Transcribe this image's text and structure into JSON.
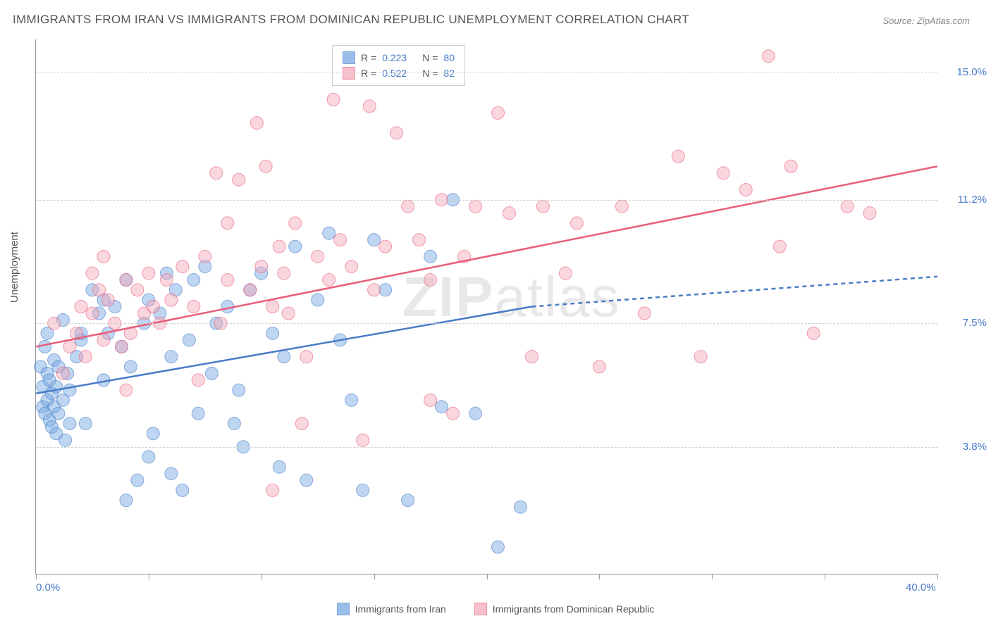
{
  "title": "IMMIGRANTS FROM IRAN VS IMMIGRANTS FROM DOMINICAN REPUBLIC UNEMPLOYMENT CORRELATION CHART",
  "source": "Source: ZipAtlas.com",
  "y_axis_label": "Unemployment",
  "watermark": "ZIPatlas",
  "chart": {
    "type": "scatter",
    "xlim": [
      0,
      40
    ],
    "ylim": [
      0,
      16
    ],
    "x_ticks_minor": [
      0,
      5,
      10,
      15,
      20,
      25,
      30,
      35,
      40
    ],
    "x_tick_labels": [
      {
        "pos": 0,
        "label": "0.0%"
      },
      {
        "pos": 40,
        "label": "40.0%"
      }
    ],
    "y_gridlines": [
      3.8,
      7.5,
      11.2,
      15.0
    ],
    "y_tick_labels": [
      {
        "pos": 3.8,
        "label": "3.8%"
      },
      {
        "pos": 7.5,
        "label": "7.5%"
      },
      {
        "pos": 11.2,
        "label": "11.2%"
      },
      {
        "pos": 15.0,
        "label": "15.0%"
      }
    ],
    "background_color": "#ffffff",
    "grid_color": "#d0d0d0",
    "marker_radius": 9,
    "marker_opacity": 0.45,
    "line_width": 2.5
  },
  "series": {
    "iran": {
      "label": "Immigrants from Iran",
      "color": "#6fa3e0",
      "stroke": "#4a7bc8",
      "fill_opacity": 0.4,
      "R": "0.223",
      "N": "80",
      "trend": {
        "x1": 0,
        "y1": 5.4,
        "x2": 22,
        "y2": 8.0,
        "x2_ext": 40,
        "y2_ext": 8.9,
        "dash_after": 22
      },
      "points": [
        [
          0.2,
          6.2
        ],
        [
          0.3,
          5.0
        ],
        [
          0.3,
          5.6
        ],
        [
          0.4,
          4.8
        ],
        [
          0.4,
          6.8
        ],
        [
          0.5,
          5.2
        ],
        [
          0.5,
          6.0
        ],
        [
          0.6,
          4.6
        ],
        [
          0.6,
          5.8
        ],
        [
          0.7,
          5.4
        ],
        [
          0.7,
          4.4
        ],
        [
          0.8,
          5.0
        ],
        [
          0.8,
          6.4
        ],
        [
          0.9,
          5.6
        ],
        [
          0.9,
          4.2
        ],
        [
          1.0,
          4.8
        ],
        [
          1.0,
          6.2
        ],
        [
          1.2,
          5.2
        ],
        [
          1.2,
          7.6
        ],
        [
          1.3,
          4.0
        ],
        [
          1.4,
          6.0
        ],
        [
          1.5,
          5.5
        ],
        [
          1.8,
          6.5
        ],
        [
          2.0,
          7.0
        ],
        [
          2.2,
          4.5
        ],
        [
          2.5,
          8.5
        ],
        [
          2.8,
          7.8
        ],
        [
          3.0,
          5.8
        ],
        [
          3.2,
          7.2
        ],
        [
          3.5,
          8.0
        ],
        [
          3.8,
          6.8
        ],
        [
          4.0,
          8.8
        ],
        [
          4.2,
          6.2
        ],
        [
          4.5,
          2.8
        ],
        [
          4.8,
          7.5
        ],
        [
          5.0,
          8.2
        ],
        [
          5.0,
          3.5
        ],
        [
          5.2,
          4.2
        ],
        [
          5.5,
          7.8
        ],
        [
          5.8,
          9.0
        ],
        [
          6.0,
          6.5
        ],
        [
          6.2,
          8.5
        ],
        [
          6.5,
          2.5
        ],
        [
          6.8,
          7.0
        ],
        [
          7.0,
          8.8
        ],
        [
          7.2,
          4.8
        ],
        [
          7.5,
          9.2
        ],
        [
          7.8,
          6.0
        ],
        [
          8.0,
          7.5
        ],
        [
          8.5,
          8.0
        ],
        [
          9.0,
          5.5
        ],
        [
          9.5,
          8.5
        ],
        [
          10.0,
          9.0
        ],
        [
          10.5,
          7.2
        ],
        [
          11.0,
          6.5
        ],
        [
          11.5,
          9.8
        ],
        [
          12.0,
          2.8
        ],
        [
          12.5,
          8.2
        ],
        [
          13.0,
          10.2
        ],
        [
          13.5,
          7.0
        ],
        [
          14.0,
          5.2
        ],
        [
          14.5,
          2.5
        ],
        [
          15.0,
          10.0
        ],
        [
          15.5,
          8.5
        ],
        [
          16.5,
          2.2
        ],
        [
          17.5,
          9.5
        ],
        [
          18.5,
          11.2
        ],
        [
          19.5,
          4.8
        ],
        [
          21.5,
          2.0
        ],
        [
          18.0,
          5.0
        ],
        [
          10.8,
          3.2
        ],
        [
          9.2,
          3.8
        ],
        [
          6.0,
          3.0
        ],
        [
          4.0,
          2.2
        ],
        [
          2.0,
          7.2
        ],
        [
          3.0,
          8.2
        ],
        [
          1.5,
          4.5
        ],
        [
          0.5,
          7.2
        ],
        [
          8.8,
          4.5
        ],
        [
          20.5,
          0.8
        ]
      ]
    },
    "dr": {
      "label": "Immigrants from Dominican Republic",
      "color": "#f4a6b8",
      "stroke": "#e85d7a",
      "fill_opacity": 0.4,
      "R": "0.522",
      "N": "82",
      "trend": {
        "x1": 0,
        "y1": 6.8,
        "x2": 40,
        "y2": 12.2
      },
      "points": [
        [
          0.8,
          7.5
        ],
        [
          1.2,
          6.0
        ],
        [
          1.5,
          6.8
        ],
        [
          1.8,
          7.2
        ],
        [
          2.0,
          8.0
        ],
        [
          2.2,
          6.5
        ],
        [
          2.5,
          7.8
        ],
        [
          2.8,
          8.5
        ],
        [
          3.0,
          7.0
        ],
        [
          3.2,
          8.2
        ],
        [
          3.5,
          7.5
        ],
        [
          3.8,
          6.8
        ],
        [
          4.0,
          8.8
        ],
        [
          4.2,
          7.2
        ],
        [
          4.5,
          8.5
        ],
        [
          4.8,
          7.8
        ],
        [
          5.0,
          9.0
        ],
        [
          5.2,
          8.0
        ],
        [
          5.5,
          7.5
        ],
        [
          5.8,
          8.8
        ],
        [
          6.0,
          8.2
        ],
        [
          6.5,
          9.2
        ],
        [
          7.0,
          8.0
        ],
        [
          7.5,
          9.5
        ],
        [
          8.0,
          12.0
        ],
        [
          8.2,
          7.5
        ],
        [
          8.5,
          8.8
        ],
        [
          9.0,
          11.8
        ],
        [
          9.5,
          8.5
        ],
        [
          9.8,
          13.5
        ],
        [
          10.0,
          9.2
        ],
        [
          10.2,
          12.2
        ],
        [
          10.5,
          8.0
        ],
        [
          10.8,
          9.8
        ],
        [
          11.0,
          9.0
        ],
        [
          11.5,
          10.5
        ],
        [
          12.0,
          6.5
        ],
        [
          12.5,
          9.5
        ],
        [
          13.0,
          8.8
        ],
        [
          13.2,
          14.2
        ],
        [
          13.5,
          10.0
        ],
        [
          14.0,
          9.2
        ],
        [
          14.8,
          14.0
        ],
        [
          15.0,
          8.5
        ],
        [
          15.5,
          9.8
        ],
        [
          16.0,
          13.2
        ],
        [
          16.5,
          11.0
        ],
        [
          17.0,
          10.0
        ],
        [
          17.5,
          8.8
        ],
        [
          18.0,
          11.2
        ],
        [
          18.5,
          4.8
        ],
        [
          19.0,
          9.5
        ],
        [
          19.5,
          11.0
        ],
        [
          20.5,
          13.8
        ],
        [
          21.0,
          10.8
        ],
        [
          22.0,
          6.5
        ],
        [
          22.5,
          11.0
        ],
        [
          23.5,
          9.0
        ],
        [
          24.0,
          10.5
        ],
        [
          25.0,
          6.2
        ],
        [
          26.0,
          11.0
        ],
        [
          27.0,
          7.8
        ],
        [
          28.5,
          12.5
        ],
        [
          29.5,
          6.5
        ],
        [
          30.5,
          12.0
        ],
        [
          31.5,
          11.5
        ],
        [
          32.5,
          15.5
        ],
        [
          33.0,
          9.8
        ],
        [
          33.5,
          12.2
        ],
        [
          34.5,
          7.2
        ],
        [
          36.0,
          11.0
        ],
        [
          37.0,
          10.8
        ],
        [
          10.5,
          2.5
        ],
        [
          11.8,
          4.5
        ],
        [
          14.5,
          4.0
        ],
        [
          7.2,
          5.8
        ],
        [
          4.0,
          5.5
        ],
        [
          3.0,
          9.5
        ],
        [
          2.5,
          9.0
        ],
        [
          17.5,
          5.2
        ],
        [
          8.5,
          10.5
        ],
        [
          11.2,
          7.8
        ]
      ]
    }
  },
  "legend_top": {
    "r_label": "R =",
    "n_label": "N ="
  },
  "legend_bottom": [
    {
      "series": "iran"
    },
    {
      "series": "dr"
    }
  ]
}
